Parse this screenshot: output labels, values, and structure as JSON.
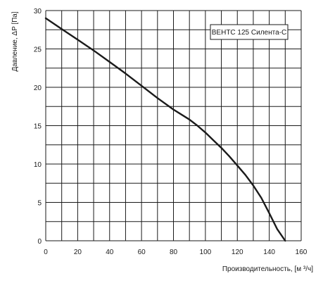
{
  "chart_data": {
    "type": "line",
    "xlabel": "Производительность, [м ³/ч]",
    "ylabel": "Давление, ΔP [Па]",
    "xlim": [
      0,
      160
    ],
    "ylim": [
      0,
      30
    ],
    "x_ticks": [
      0,
      20,
      40,
      60,
      80,
      100,
      120,
      140,
      160
    ],
    "y_ticks": [
      0,
      5,
      10,
      15,
      20,
      25,
      30
    ],
    "grid": true,
    "legend_position": "top-right",
    "series": [
      {
        "name": "ВЕНТС 125 Силента-С",
        "color": "#1a1a1a",
        "x": [
          0,
          10,
          20,
          30,
          40,
          50,
          60,
          70,
          80,
          90,
          95,
          100,
          105,
          110,
          115,
          120,
          125,
          130,
          135,
          140,
          145,
          150
        ],
        "y": [
          29,
          27.6,
          26.2,
          24.8,
          23.3,
          21.8,
          20.2,
          18.6,
          17.1,
          15.8,
          15.0,
          14.1,
          13.1,
          12.1,
          11.0,
          9.8,
          8.6,
          7.2,
          5.6,
          3.6,
          1.5,
          0
        ]
      }
    ]
  }
}
